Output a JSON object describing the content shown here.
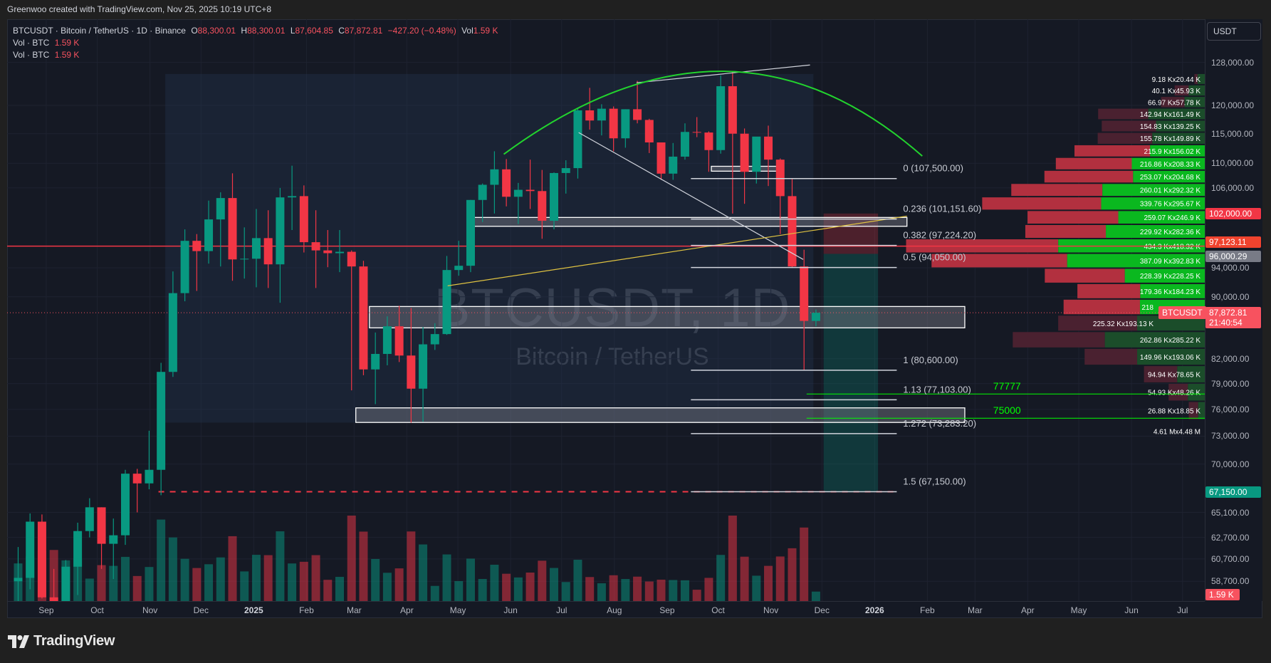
{
  "topbar": {
    "credit": "Greenwoo created with TradingView.com, Nov 25, 2025 10:19 UTC+8"
  },
  "legend": {
    "symbol_line": "BTCUSDT · Bitcoin / TetherUS · 1D · Binance",
    "o_label": "O",
    "o": "88,300.01",
    "h_label": "H",
    "h": "88,300.01",
    "l_label": "L",
    "l": "87,604.85",
    "c_label": "C",
    "c": "87,872.81",
    "change": "−427.20 (−0.48%)",
    "vol_label": "Vol",
    "vol": "1.59 K",
    "indicators": [
      {
        "name": "Vol · BTC",
        "value": "1.59 K"
      },
      {
        "name": "Vol · BTC",
        "value": "1.59 K"
      }
    ]
  },
  "watermark": {
    "title": "BTCUSDT, 1D",
    "subtitle": "Bitcoin / TetherUS"
  },
  "price_axis": {
    "currency_button": "USDT",
    "ticks": [
      "128,000.00",
      "120,000.00",
      "115,000.00",
      "110,000.00",
      "106,000.00",
      "94,000.00",
      "90,000.00",
      "82,000.00",
      "79,000.00",
      "76,000.00",
      "73,000.00",
      "70,000.00",
      "65,100.00",
      "62,700.00",
      "60,700.00",
      "58,700.00"
    ],
    "badges": [
      {
        "text": "102,000.00",
        "price": 102000,
        "color": "#f23645"
      },
      {
        "text": "97,123.11",
        "price": 97123.11,
        "color": "#f0432e"
      },
      {
        "text": "96,000.29",
        "price": 96000.29,
        "color": "#787b86"
      },
      {
        "text": "67,150.00",
        "price": 67150,
        "color": "#089981"
      }
    ],
    "last_price": {
      "symbol": "BTCUSDT",
      "price_text": "87,872.81",
      "countdown": "21:40:54",
      "price": 87872.81,
      "color": "#f7525f"
    },
    "volume_badge": {
      "text": "1.59 K",
      "color": "#f7525f"
    }
  },
  "time_axis": [
    {
      "label": "Sep",
      "date": "2024-09-01"
    },
    {
      "label": "Oct",
      "date": "2024-10-01"
    },
    {
      "label": "Nov",
      "date": "2024-11-01"
    },
    {
      "label": "Dec",
      "date": "2024-12-01"
    },
    {
      "label": "2025",
      "date": "2025-01-01",
      "bold": true
    },
    {
      "label": "Feb",
      "date": "2025-02-01"
    },
    {
      "label": "Mar",
      "date": "2025-03-01"
    },
    {
      "label": "Apr",
      "date": "2025-04-01"
    },
    {
      "label": "May",
      "date": "2025-05-01"
    },
    {
      "label": "Jun",
      "date": "2025-06-01"
    },
    {
      "label": "Jul",
      "date": "2025-07-01"
    },
    {
      "label": "Aug",
      "date": "2025-08-01"
    },
    {
      "label": "Sep",
      "date": "2025-09-01"
    },
    {
      "label": "Oct",
      "date": "2025-10-01"
    },
    {
      "label": "Nov",
      "date": "2025-11-01"
    },
    {
      "label": "Dec",
      "date": "2025-12-01"
    },
    {
      "label": "2026",
      "date": "2026-01-01",
      "bold": true
    },
    {
      "label": "Feb",
      "date": "2026-02-01"
    },
    {
      "label": "Mar",
      "date": "2026-03-01"
    },
    {
      "label": "Apr",
      "date": "2026-04-01"
    },
    {
      "label": "May",
      "date": "2026-05-01"
    },
    {
      "label": "Jun",
      "date": "2026-06-01"
    },
    {
      "label": "Jul",
      "date": "2026-07-01"
    }
  ],
  "chart_data": {
    "type": "candlestick",
    "scale": "log",
    "ylim": [
      58700,
      128000
    ],
    "grid": true,
    "colors": {
      "up": "#089981",
      "down": "#f23645"
    },
    "candles_weekly_approx": [
      [
        "2024-08-12",
        58700,
        61800,
        56100,
        59000
      ],
      [
        "2024-08-19",
        59000,
        65000,
        58000,
        64200
      ],
      [
        "2024-08-26",
        64200,
        64900,
        57200,
        57300
      ],
      [
        "2024-09-02",
        57300,
        59800,
        52550,
        54800
      ],
      [
        "2024-09-09",
        54800,
        60600,
        54600,
        60000
      ],
      [
        "2024-09-16",
        60000,
        64100,
        57500,
        63300
      ],
      [
        "2024-09-23",
        63300,
        66500,
        62700,
        65600
      ],
      [
        "2024-09-30",
        65600,
        65600,
        59800,
        62100
      ],
      [
        "2024-10-07",
        62100,
        64500,
        58900,
        62900
      ],
      [
        "2024-10-14",
        62900,
        69400,
        62000,
        69000
      ],
      [
        "2024-10-21",
        69000,
        69500,
        65100,
        68000
      ],
      [
        "2024-10-28",
        68000,
        73600,
        67400,
        69400
      ],
      [
        "2024-11-04",
        69400,
        81500,
        66800,
        80400
      ],
      [
        "2024-11-11",
        80400,
        93500,
        79800,
        90500
      ],
      [
        "2024-11-18",
        90500,
        99600,
        89400,
        97900
      ],
      [
        "2024-11-25",
        97900,
        98900,
        90800,
        96400
      ],
      [
        "2024-12-02",
        96400,
        104000,
        94600,
        101100
      ],
      [
        "2024-12-09",
        101100,
        105300,
        94200,
        104400
      ],
      [
        "2024-12-16",
        104400,
        108350,
        92200,
        95200
      ],
      [
        "2024-12-23",
        95200,
        99900,
        92500,
        95300
      ],
      [
        "2024-12-30",
        95300,
        102700,
        91300,
        98300
      ],
      [
        "2025-01-06",
        98300,
        102500,
        91200,
        94500
      ],
      [
        "2025-01-13",
        94500,
        106000,
        89200,
        104500
      ],
      [
        "2025-01-20",
        104500,
        109600,
        99500,
        104700
      ],
      [
        "2025-01-27",
        104700,
        106400,
        96200,
        97700
      ],
      [
        "2025-02-03",
        97700,
        102500,
        91200,
        96500
      ],
      [
        "2025-02-10",
        96500,
        99500,
        94100,
        96100
      ],
      [
        "2025-02-17",
        96100,
        99500,
        93400,
        96300
      ],
      [
        "2025-02-24",
        96300,
        96500,
        78200,
        94200
      ],
      [
        "2025-03-03",
        94200,
        95000,
        80000,
        80700
      ],
      [
        "2025-03-10",
        80700,
        85300,
        76600,
        82600
      ],
      [
        "2025-03-17",
        82600,
        87400,
        81200,
        86100
      ],
      [
        "2025-03-24",
        86100,
        88800,
        81600,
        82400
      ],
      [
        "2025-03-31",
        82400,
        88500,
        74500,
        78400
      ],
      [
        "2025-04-07",
        78400,
        86000,
        74600,
        83800
      ],
      [
        "2025-04-14",
        83800,
        86500,
        83100,
        85100
      ],
      [
        "2025-04-21",
        85100,
        95700,
        85000,
        93700
      ],
      [
        "2025-04-28",
        93700,
        97900,
        92900,
        94300
      ],
      [
        "2025-05-05",
        94300,
        104100,
        93400,
        104100
      ],
      [
        "2025-05-12",
        104100,
        106700,
        100700,
        106500
      ],
      [
        "2025-05-19",
        106500,
        112000,
        102000,
        109000
      ],
      [
        "2025-05-26",
        109000,
        110700,
        103100,
        104600
      ],
      [
        "2025-06-02",
        104600,
        106800,
        100400,
        105700
      ],
      [
        "2025-06-09",
        105700,
        110600,
        102700,
        105500
      ],
      [
        "2025-06-16",
        105500,
        108900,
        98200,
        100900
      ],
      [
        "2025-06-23",
        100900,
        108500,
        99600,
        108400
      ],
      [
        "2025-06-30",
        108400,
        110500,
        105100,
        109200
      ],
      [
        "2025-07-07",
        109200,
        119500,
        107500,
        119100
      ],
      [
        "2025-07-14",
        119100,
        123200,
        115700,
        117300
      ],
      [
        "2025-07-21",
        117300,
        120200,
        114700,
        119400
      ],
      [
        "2025-07-28",
        119400,
        119800,
        112000,
        114200
      ],
      [
        "2025-08-04",
        114200,
        119300,
        112600,
        119300
      ],
      [
        "2025-08-11",
        119300,
        124500,
        116800,
        117400
      ],
      [
        "2025-08-18",
        117400,
        117600,
        111700,
        113500
      ],
      [
        "2025-08-25",
        113500,
        113500,
        107300,
        108300
      ],
      [
        "2025-09-01",
        108300,
        113400,
        107300,
        111100
      ],
      [
        "2025-09-08",
        111100,
        116800,
        110600,
        115300
      ],
      [
        "2025-09-15",
        115300,
        117900,
        114400,
        115200
      ],
      [
        "2025-09-22",
        115200,
        115400,
        108600,
        112200
      ],
      [
        "2025-09-29",
        112200,
        125500,
        111600,
        123500
      ],
      [
        "2025-10-06",
        123500,
        126200,
        102000,
        115000
      ],
      [
        "2025-10-13",
        115000,
        115900,
        103500,
        108600
      ],
      [
        "2025-10-20",
        108600,
        114000,
        106700,
        114500
      ],
      [
        "2025-10-27",
        114500,
        116400,
        106300,
        110600
      ],
      [
        "2025-11-03",
        110600,
        110800,
        98900,
        104700
      ],
      [
        "2025-11-10",
        104700,
        107400,
        94000,
        94200
      ],
      [
        "2025-11-17",
        94200,
        96600,
        80600,
        86800
      ],
      [
        "2025-11-24",
        86800,
        88300,
        86100,
        87872.81
      ]
    ],
    "fib_levels": [
      {
        "label": "0 (107,500.00)",
        "price": 107500
      },
      {
        "label": "0.236 (101,151.60)",
        "price": 101151.6
      },
      {
        "label": "0.382 (97,224.20)",
        "price": 97224.2
      },
      {
        "label": "0.5 (94,050.00)",
        "price": 94050
      },
      {
        "label": "1 (80,600.00)",
        "price": 80600
      },
      {
        "label": "1.13 (77,103.00)",
        "price": 77103
      },
      {
        "label": "1.272 (73,283.20)",
        "price": 73283.2
      },
      {
        "label": "1.5 (67,150.00)",
        "price": 67150
      }
    ],
    "fib_range": {
      "from": "2025-09-15",
      "to": "2026-01-14"
    },
    "horizontal_lines": [
      {
        "price": 97123.11,
        "color": "#f23645",
        "style": "solid",
        "from": null,
        "to": null
      },
      {
        "price": 67150,
        "color": "#f23645",
        "style": "dashed",
        "from": "2024-11-06",
        "to": "2026-01-14"
      },
      {
        "price": 77777,
        "color": "#00ff00",
        "style": "solid",
        "from": "2025-11-22",
        "to": null,
        "label": "77777"
      },
      {
        "price": 75000,
        "color": "#00ff00",
        "style": "solid",
        "from": "2025-11-22",
        "to": null,
        "label": "75000"
      }
    ],
    "boxes": [
      {
        "from": "2025-03-10",
        "to": "2026-02-23",
        "top": 88700,
        "bottom": 85900
      },
      {
        "from": "2025-03-02",
        "to": "2026-02-23",
        "top": 76170,
        "bottom": 74520
      },
      {
        "from": "2025-05-10",
        "to": "2026-01-20",
        "top": 101400,
        "bottom": 100060
      },
      {
        "from": "2025-09-27",
        "to": "2025-11-08",
        "top": 109500,
        "bottom": 108700
      }
    ],
    "shaded_range": {
      "from": "2024-11-10",
      "to": "2025-11-26",
      "top": 125800,
      "bottom": 74500
    },
    "position_tool": {
      "from": "2025-12-02",
      "to": "2026-01-03",
      "stop": 102000,
      "entry": 96000.29,
      "target": 67150
    },
    "arc": {
      "start": [
        "2025-05-28",
        111500
      ],
      "apex": [
        "2025-10-03",
        126300
      ],
      "end": [
        "2026-01-29",
        111200
      ],
      "color": "#22d32e"
    },
    "trendlines": [
      {
        "from": [
          "2025-08-14",
          124150
        ],
        "to": [
          "2025-11-24",
          127500
        ],
        "color": "#d1d4dc"
      },
      {
        "from": [
          "2025-07-11",
          115200
        ],
        "to": [
          "2025-11-20",
          95200
        ],
        "color": "#d1d4dc"
      },
      {
        "from": [
          "2025-04-25",
          91500
        ],
        "to": [
          "2026-01-20",
          101600
        ],
        "color": "#e0c341"
      }
    ],
    "volume_profile": {
      "price_from": 74800,
      "row_step": 2130,
      "total_label": "4.61 Mx4.48 M",
      "rows_top_to_bottom": [
        {
          "label": "9.18 Kx20.44 K",
          "a": 9.18,
          "b": 20.44,
          "in_value_area": false
        },
        {
          "label": "40.1 Kx45.93 K",
          "a": 40.1,
          "b": 45.93,
          "in_value_area": false
        },
        {
          "label": "66.97 Kx57.78 K",
          "a": 66.97,
          "b": 57.78,
          "in_value_area": false
        },
        {
          "label": "142.94 Kx161.49 K",
          "a": 142.94,
          "b": 161.49,
          "in_value_area": false
        },
        {
          "label": "154.83 Kx139.25 K",
          "a": 154.83,
          "b": 139.25,
          "in_value_area": false
        },
        {
          "label": "155.78 Kx149.89 K",
          "a": 155.78,
          "b": 149.89,
          "in_value_area": false
        },
        {
          "label": "215.9 Kx156.02 K",
          "a": 215.9,
          "b": 156.02,
          "in_value_area": true
        },
        {
          "label": "216.86 Kx208.33 K",
          "a": 216.86,
          "b": 208.33,
          "in_value_area": true
        },
        {
          "label": "253.07 Kx204.68 K",
          "a": 253.07,
          "b": 204.68,
          "in_value_area": true
        },
        {
          "label": "260.01 Kx292.32 K",
          "a": 260.01,
          "b": 292.32,
          "in_value_area": true
        },
        {
          "label": "339.76 Kx295.67 K",
          "a": 339.76,
          "b": 295.67,
          "in_value_area": true
        },
        {
          "label": "259.07 Kx246.9 K",
          "a": 259.07,
          "b": 246.9,
          "in_value_area": true
        },
        {
          "label": "229.92 Kx282.36 K",
          "a": 229.92,
          "b": 282.36,
          "in_value_area": true
        },
        {
          "label": "434.3 Kx418.32 K",
          "a": 434.3,
          "b": 418.32,
          "in_value_area": true
        },
        {
          "label": "387.09 Kx392.83 K",
          "a": 387.09,
          "b": 392.83,
          "in_value_area": true
        },
        {
          "label": "228.39 Kx228.25 K",
          "a": 228.39,
          "b": 228.25,
          "in_value_area": true
        },
        {
          "label": "179.36 Kx184.23 K",
          "a": 179.36,
          "b": 184.23,
          "in_value_area": true
        },
        {
          "label": "218",
          "a": 218,
          "b": 185,
          "in_value_area": true
        },
        {
          "label": "225.32 Kx193.13 K",
          "a": 225.32,
          "b": 193.13,
          "in_value_area": false
        },
        {
          "label": "262.86 Kx285.22 K",
          "a": 262.86,
          "b": 285.22,
          "in_value_area": false
        },
        {
          "label": "149.96 Kx193.06 K",
          "a": 149.96,
          "b": 193.06,
          "in_value_area": false
        },
        {
          "label": "94.94 Kx78.65 K",
          "a": 94.94,
          "b": 78.65,
          "in_value_area": false
        },
        {
          "label": "54.93 Kx48.26 K",
          "a": 54.93,
          "b": 48.26,
          "in_value_area": false
        },
        {
          "label": "26.88 Kx18.85 K",
          "a": 26.88,
          "b": 18.85,
          "in_value_area": false
        }
      ]
    }
  },
  "footer": {
    "brand": "TradingView"
  }
}
